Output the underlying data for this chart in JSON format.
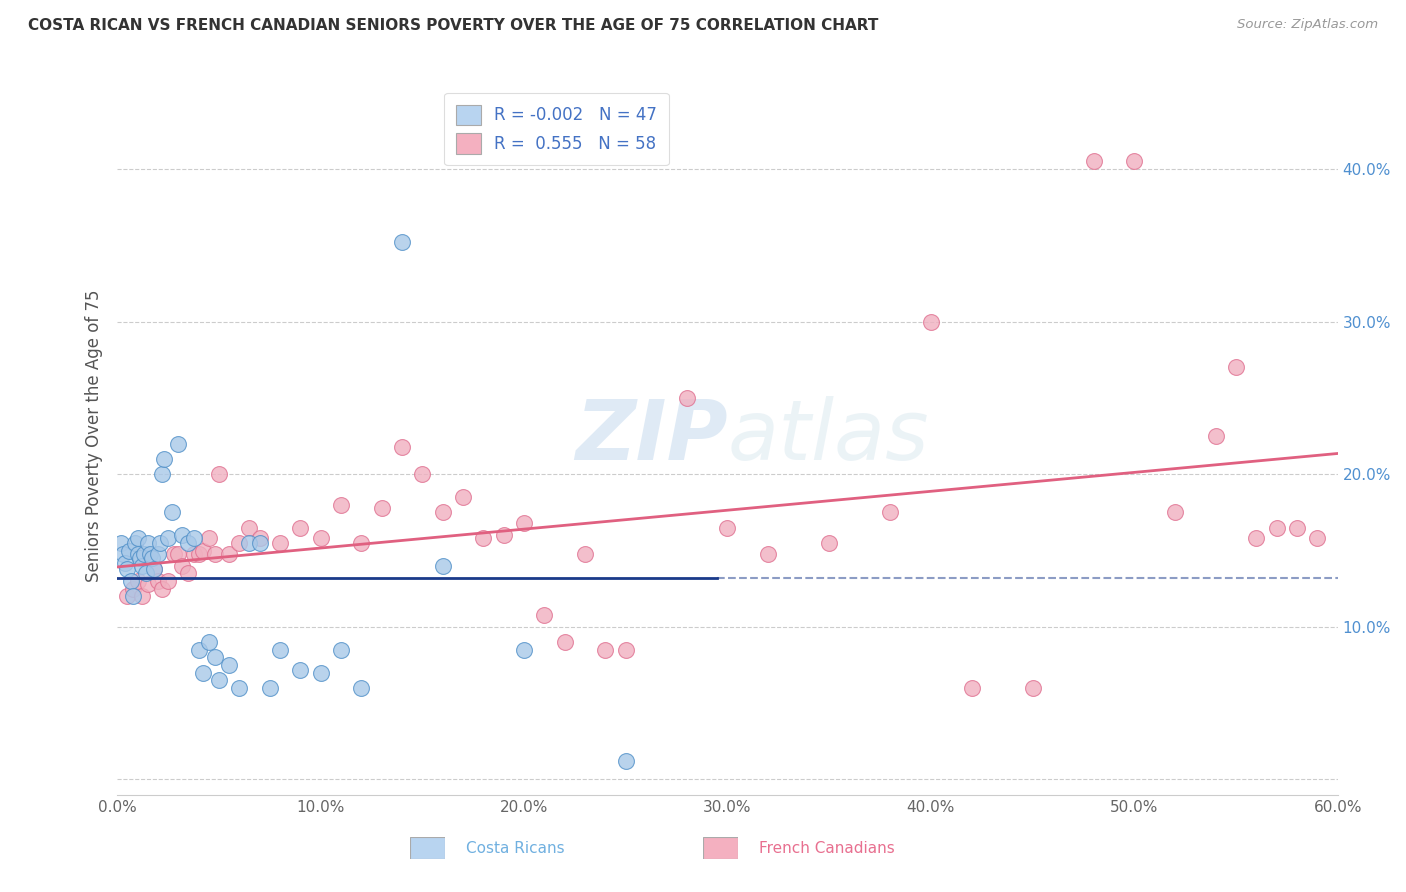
{
  "title": "COSTA RICAN VS FRENCH CANADIAN SENIORS POVERTY OVER THE AGE OF 75 CORRELATION CHART",
  "source": "Source: ZipAtlas.com",
  "ylabel": "Seniors Poverty Over the Age of 75",
  "xlim": [
    0.0,
    0.6
  ],
  "ylim": [
    -0.01,
    0.46
  ],
  "xticks": [
    0.0,
    0.1,
    0.2,
    0.3,
    0.4,
    0.5,
    0.6
  ],
  "xticklabels": [
    "0.0%",
    "10.0%",
    "20.0%",
    "30.0%",
    "40.0%",
    "50.0%",
    "60.0%"
  ],
  "yticks": [
    0.0,
    0.1,
    0.2,
    0.3,
    0.4
  ],
  "yticklabels": [
    "",
    "10.0%",
    "20.0%",
    "30.0%",
    "40.0%"
  ],
  "watermark": "ZIPatlas",
  "group1_color": "#a8c8e8",
  "group1_edge": "#5090c8",
  "group2_color": "#f0b0c0",
  "group2_edge": "#e07090",
  "trendline1_color": "#1a3a8a",
  "trendline2_color": "#e06080",
  "legend_r1": "R = -0.002",
  "legend_n1": "N = 47",
  "legend_r2": "R =  0.555",
  "legend_n2": "N = 58",
  "legend_patch1": "#b8d4f0",
  "legend_patch2": "#f4b0c0",
  "bottom_label1": "Costa Ricans",
  "bottom_label2": "French Canadians",
  "bottom_color1": "#70b0e0",
  "bottom_color2": "#e87090",
  "cr_x": [
    0.002,
    0.003,
    0.004,
    0.005,
    0.006,
    0.007,
    0.008,
    0.009,
    0.01,
    0.01,
    0.011,
    0.012,
    0.013,
    0.014,
    0.015,
    0.016,
    0.017,
    0.018,
    0.02,
    0.021,
    0.022,
    0.023,
    0.025,
    0.027,
    0.03,
    0.032,
    0.035,
    0.038,
    0.04,
    0.042,
    0.045,
    0.048,
    0.05,
    0.055,
    0.06,
    0.065,
    0.07,
    0.075,
    0.08,
    0.09,
    0.1,
    0.11,
    0.12,
    0.14,
    0.16,
    0.2,
    0.25
  ],
  "cr_y": [
    0.155,
    0.148,
    0.142,
    0.138,
    0.15,
    0.13,
    0.12,
    0.155,
    0.158,
    0.148,
    0.145,
    0.14,
    0.148,
    0.135,
    0.155,
    0.148,
    0.145,
    0.138,
    0.148,
    0.155,
    0.2,
    0.21,
    0.158,
    0.175,
    0.22,
    0.16,
    0.155,
    0.158,
    0.085,
    0.07,
    0.09,
    0.08,
    0.065,
    0.075,
    0.06,
    0.155,
    0.155,
    0.06,
    0.085,
    0.072,
    0.07,
    0.085,
    0.06,
    0.352,
    0.14,
    0.085,
    0.012
  ],
  "fc_x": [
    0.005,
    0.008,
    0.01,
    0.012,
    0.015,
    0.018,
    0.02,
    0.022,
    0.025,
    0.028,
    0.03,
    0.032,
    0.035,
    0.038,
    0.04,
    0.042,
    0.045,
    0.048,
    0.05,
    0.055,
    0.06,
    0.065,
    0.07,
    0.08,
    0.09,
    0.1,
    0.11,
    0.12,
    0.13,
    0.14,
    0.15,
    0.16,
    0.17,
    0.18,
    0.19,
    0.2,
    0.21,
    0.22,
    0.23,
    0.24,
    0.25,
    0.28,
    0.3,
    0.32,
    0.35,
    0.38,
    0.4,
    0.42,
    0.45,
    0.48,
    0.5,
    0.52,
    0.54,
    0.55,
    0.56,
    0.57,
    0.58,
    0.59
  ],
  "fc_y": [
    0.12,
    0.125,
    0.13,
    0.12,
    0.128,
    0.138,
    0.13,
    0.125,
    0.13,
    0.148,
    0.148,
    0.14,
    0.135,
    0.148,
    0.148,
    0.15,
    0.158,
    0.148,
    0.2,
    0.148,
    0.155,
    0.165,
    0.158,
    0.155,
    0.165,
    0.158,
    0.18,
    0.155,
    0.178,
    0.218,
    0.2,
    0.175,
    0.185,
    0.158,
    0.16,
    0.168,
    0.108,
    0.09,
    0.148,
    0.085,
    0.085,
    0.25,
    0.165,
    0.148,
    0.155,
    0.175,
    0.3,
    0.06,
    0.06,
    0.405,
    0.405,
    0.175,
    0.225,
    0.27,
    0.158,
    0.165,
    0.165,
    0.158
  ]
}
